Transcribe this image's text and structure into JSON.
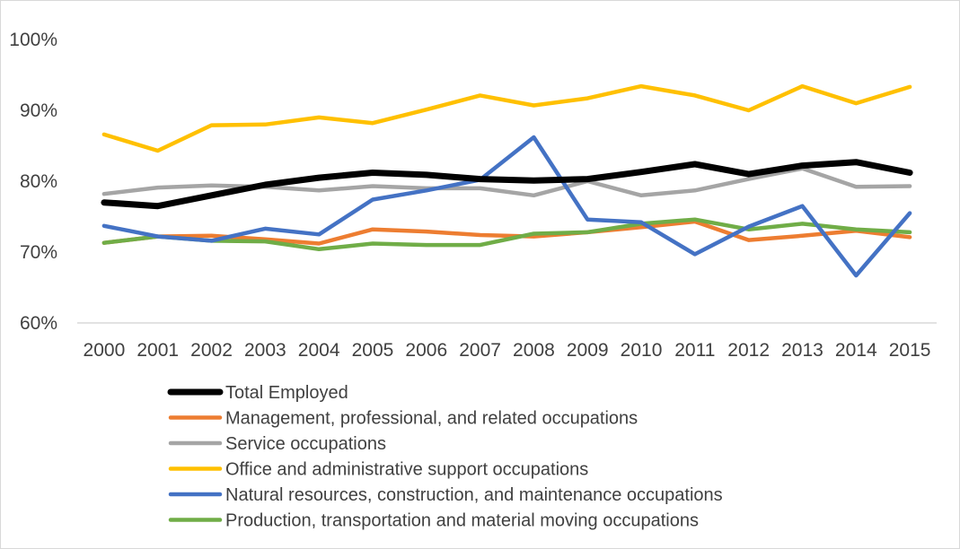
{
  "chart_data": {
    "type": "line",
    "title": "",
    "xlabel": "",
    "ylabel": "",
    "x": [
      "2000",
      "2001",
      "2002",
      "2003",
      "2004",
      "2005",
      "2006",
      "2007",
      "2008",
      "2009",
      "2010",
      "2011",
      "2012",
      "2013",
      "2014",
      "2015"
    ],
    "ylim": [
      60,
      100
    ],
    "y_ticks": [
      "60%",
      "70%",
      "80%",
      "90%",
      "100%"
    ],
    "y_tick_values": [
      60,
      70,
      80,
      90,
      100
    ],
    "y_unit": "%",
    "grid": "horizontal baseline only",
    "legend_position": "bottom",
    "series": [
      {
        "name": "Total Employed",
        "color": "#000000",
        "values": [
          77.0,
          76.5,
          78.0,
          79.5,
          80.5,
          81.2,
          80.9,
          80.3,
          80.1,
          80.3,
          81.3,
          82.4,
          81.0,
          82.2,
          82.7,
          81.2
        ]
      },
      {
        "name": "Management, professional, and related occupations",
        "color": "#ED7D31",
        "values": [
          71.3,
          72.2,
          72.3,
          71.8,
          71.2,
          73.2,
          72.9,
          72.4,
          72.2,
          72.8,
          73.5,
          74.3,
          71.7,
          72.3,
          73.0,
          72.1
        ]
      },
      {
        "name": "Service occupations",
        "color": "#A5A5A5",
        "values": [
          78.2,
          79.1,
          79.4,
          79.2,
          78.7,
          79.3,
          79.0,
          79.0,
          78.0,
          80.0,
          78.0,
          78.7,
          80.3,
          81.8,
          79.2,
          79.3
        ]
      },
      {
        "name": "Office and administrative support occupations",
        "color": "#FFC000",
        "values": [
          86.6,
          84.3,
          87.9,
          88.0,
          89.0,
          88.2,
          90.1,
          92.1,
          90.7,
          91.7,
          93.4,
          92.1,
          90.0,
          93.4,
          91.0,
          93.3
        ]
      },
      {
        "name": "Natural resources, construction, and maintenance occupations",
        "color": "#4472C4",
        "values": [
          73.7,
          72.2,
          71.6,
          73.3,
          72.5,
          77.4,
          78.7,
          80.2,
          86.2,
          74.6,
          74.2,
          69.7,
          73.6,
          76.5,
          66.7,
          75.5
        ]
      },
      {
        "name": "Production, transportation and material moving occupations",
        "color": "#70AD47",
        "values": [
          71.3,
          72.2,
          71.6,
          71.5,
          70.4,
          71.2,
          71.0,
          71.0,
          72.6,
          72.8,
          74.0,
          74.6,
          73.2,
          74.0,
          73.2,
          72.8
        ]
      }
    ]
  }
}
